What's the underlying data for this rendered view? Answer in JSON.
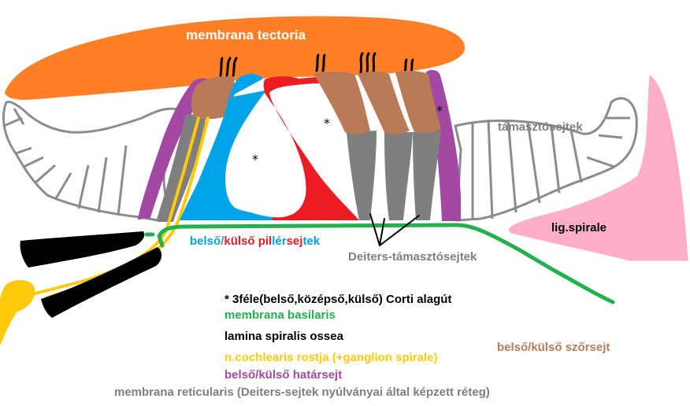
{
  "labels": {
    "membrana_tectoria": "membrana tectoria",
    "tamaszto_sejtek": "támasztósejtek",
    "lig_spirale": "lig.spirale",
    "piller_parts": [
      "belső",
      "/",
      "külső",
      " pil",
      "lér",
      "sej",
      "tek"
    ],
    "deiters": "Deiters-támasztósejtek",
    "corti": "* 3féle(belső,középső,külső) Corti alagút",
    "membrana_basilaris": "membrana basilaris",
    "lamina": "lamina spiralis ossea",
    "cochlearis": "n.cochlearis rostja (+ganglion spirale)",
    "hatarsejt": "belső/külső határsejt",
    "szorsejt": "belső/külső szőrsejt",
    "reticularis": "membrana reticularis (Deiters-sejtek nyúlványai által képzett réteg)"
  },
  "stars": [
    "*",
    "*",
    "*"
  ],
  "colors": {
    "tectoria": "#ff7f27",
    "support_gray": "#8c8c8c",
    "deiters_gray": "#7f7f7f",
    "pillar_blue": "#00a2e8",
    "pillar_red": "#ed1c24",
    "hair_brown": "#b97a57",
    "border_purple": "#a349a4",
    "basilar_green": "#22b14c",
    "nerve_yellow": "#ffc90e",
    "lig_pink": "#ffaec9",
    "bone_black": "#000000",
    "reticular_gray": "#7f7f7f"
  }
}
